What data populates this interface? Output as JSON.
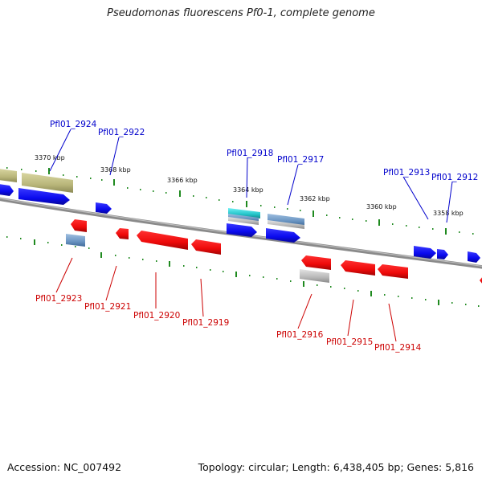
{
  "title": "Pseudomonas fluorescens Pf0-1, complete genome",
  "footer": {
    "accession": "Accession: NC_007492",
    "summary": "Topology: circular; Length: 6,438,405 bp; Genes: 5,816"
  },
  "colors": {
    "forward_gene": "#0a0aee",
    "reverse_gene": "#ee0a0a",
    "tick": "#1f8a1f",
    "backbone": "#8c8c8c",
    "olive_feature": "#b9b67a",
    "steel_feature": "#6a95c2",
    "cyan_feature": "#23c4c9",
    "grey_feature": "#b8b8b8"
  },
  "scale_labels": [
    "3370 kbp",
    "3368 kbp",
    "3366 kbp",
    "3364 kbp",
    "3362 kbp",
    "3360 kbp",
    "3358 kbp"
  ],
  "forward_genes": [
    "Pfl01_2924",
    "Pfl01_2922",
    "Pfl01_2918",
    "Pfl01_2917",
    "Pfl01_2913",
    "Pfl01_2912"
  ],
  "reverse_genes": [
    "Pfl01_2923",
    "Pfl01_2921",
    "Pfl01_2920",
    "Pfl01_2919",
    "Pfl01_2916",
    "Pfl01_2915",
    "Pfl01_2914"
  ]
}
